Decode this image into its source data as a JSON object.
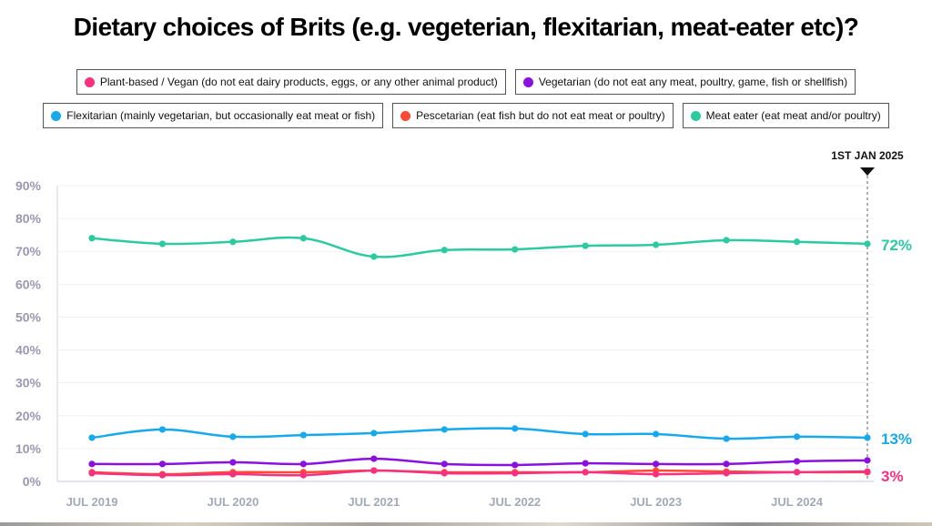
{
  "chart_data": {
    "type": "line",
    "title": "Dietary choices of Brits (e.g. vegeterian, flexitarian, meat-eater etc)?",
    "xlabel": "",
    "ylabel": "",
    "ylim": [
      0,
      90
    ],
    "yticks": [
      "0%",
      "10%",
      "20%",
      "30%",
      "40%",
      "50%",
      "60%",
      "70%",
      "80%",
      "90%"
    ],
    "ytick_values": [
      0,
      10,
      20,
      30,
      40,
      50,
      60,
      70,
      80,
      90
    ],
    "x": [
      "Jul 2019",
      "Jan 2020",
      "Jul 2020",
      "Jan 2021",
      "Jul 2021",
      "Jan 2022",
      "Jul 2022",
      "Jan 2023",
      "Jul 2023",
      "Jan 2024",
      "Jul 2024",
      "Jan 2025"
    ],
    "xtick_labels": [
      "JUL 2019",
      "JUL 2020",
      "JUL 2021",
      "JUL 2022",
      "JUL 2023",
      "JUL 2024"
    ],
    "xtick_indices": [
      0,
      2,
      4,
      6,
      8,
      10
    ],
    "grid": true,
    "legend_position": "top",
    "marker": {
      "label": "1ST JAN 2025",
      "index": 11
    },
    "series": [
      {
        "name": "Plant-based / Vegan (do not eat dairy products, eggs, or any other animal product)",
        "color": "#f7317f",
        "values": [
          2.5,
          1.9,
          2.2,
          1.9,
          3.3,
          2.5,
          2.5,
          2.8,
          2.2,
          2.5,
          2.8,
          3.0
        ]
      },
      {
        "name": "Vegetarian (do not eat any meat, poultry, game, fish or shellfish)",
        "color": "#8a10e0",
        "values": [
          5.3,
          5.3,
          5.8,
          5.3,
          6.9,
          5.3,
          5.0,
          5.5,
          5.3,
          5.3,
          6.1,
          6.4
        ]
      },
      {
        "name": "Flexitarian (mainly vegetarian, but occasionally eat meat or fish)",
        "color": "#17a9ec",
        "values": [
          13.3,
          15.8,
          13.6,
          14.1,
          14.7,
          15.8,
          16.1,
          14.4,
          14.4,
          13.0,
          13.6,
          13.3
        ]
      },
      {
        "name": "Pescetarian (eat fish but do not eat meat or poultry)",
        "color": "#fe4a34",
        "values": [
          2.8,
          2.2,
          2.8,
          2.8,
          3.3,
          2.8,
          2.8,
          2.8,
          3.3,
          3.0,
          2.8,
          2.8
        ]
      },
      {
        "name": "Meat eater (eat meat and/or poultry)",
        "color": "#2ccaa0",
        "values": [
          74.0,
          72.3,
          72.9,
          74.0,
          68.4,
          70.4,
          70.6,
          71.7,
          72.0,
          73.4,
          72.9,
          72.3
        ]
      }
    ],
    "end_labels": [
      {
        "text": "72%",
        "series": 4,
        "color": "#2ccaa0"
      },
      {
        "text": "13%",
        "series": 2,
        "color": "#17a9ec"
      },
      {
        "text": "3%",
        "series": 0,
        "color": "#f7317f"
      }
    ]
  },
  "legend_rows": [
    [
      0,
      1
    ],
    [
      2,
      3,
      4
    ]
  ]
}
